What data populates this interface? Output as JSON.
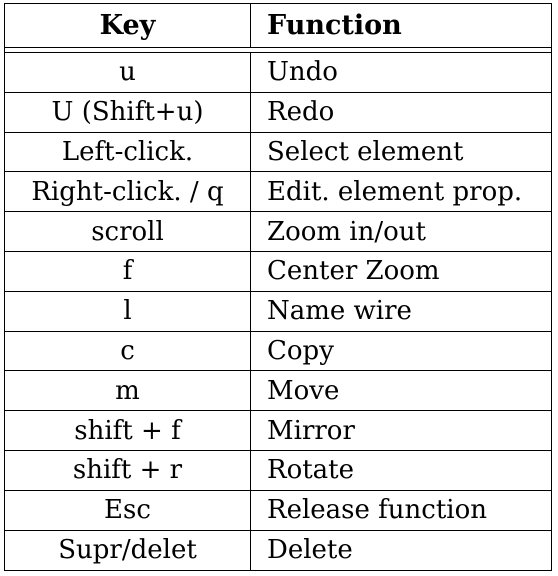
{
  "header": {
    "key_label": "Key",
    "function_label": "Function"
  },
  "rows": [
    {
      "key": "u",
      "function": "Undo"
    },
    {
      "key": "U (Shift+u)",
      "function": "Redo"
    },
    {
      "key": "Left-click.",
      "function": "Select element"
    },
    {
      "key": "Right-click. / q",
      "function": "Edit. element prop."
    },
    {
      "key": "scroll",
      "function": "Zoom in/out"
    },
    {
      "key": "f",
      "function": "Center Zoom"
    },
    {
      "key": "l",
      "function": "Name wire"
    },
    {
      "key": "c",
      "function": "Copy"
    },
    {
      "key": "m",
      "function": "Move"
    },
    {
      "key": "shift + f",
      "function": "Mirror"
    },
    {
      "key": "shift + r",
      "function": "Rotate"
    },
    {
      "key": "Esc",
      "function": "Release function"
    },
    {
      "key": "Supr/delet",
      "function": "Delete"
    }
  ]
}
